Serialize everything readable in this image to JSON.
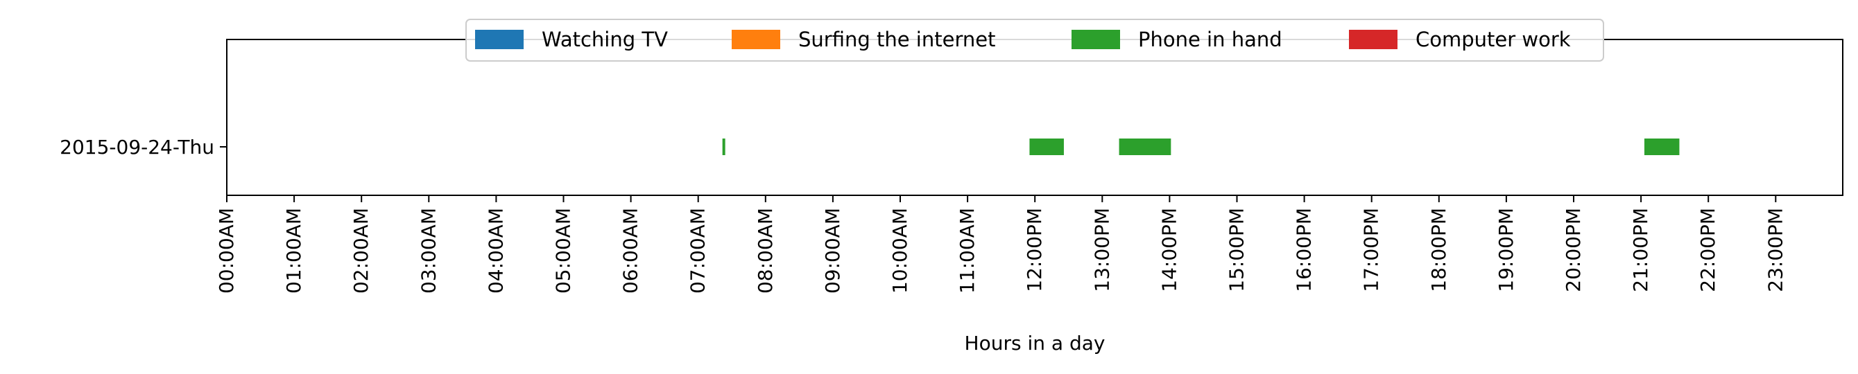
{
  "chart_data": {
    "type": "timeline",
    "xlabel": "Hours in a day",
    "ylabel": "",
    "xlim": [
      0,
      24
    ],
    "x_ticks": [
      "00:00AM",
      "01:00AM",
      "02:00AM",
      "03:00AM",
      "04:00AM",
      "05:00AM",
      "06:00AM",
      "07:00AM",
      "08:00AM",
      "09:00AM",
      "10:00AM",
      "11:00AM",
      "12:00PM",
      "13:00PM",
      "14:00PM",
      "15:00PM",
      "16:00PM",
      "17:00PM",
      "18:00PM",
      "19:00PM",
      "20:00PM",
      "21:00PM",
      "22:00PM",
      "23:00PM"
    ],
    "categories": [
      "2015-09-24-Thu"
    ],
    "legend_position": "top-center",
    "grid": false,
    "series": [
      {
        "name": "Watching TV",
        "color": "#1f77b4",
        "intervals": []
      },
      {
        "name": "Surfing the internet",
        "color": "#ff7f0e",
        "intervals": []
      },
      {
        "name": "Phone in hand",
        "color": "#2ca02c",
        "intervals": [
          {
            "category": "2015-09-24-Thu",
            "start": 7.36,
            "end": 7.4
          },
          {
            "category": "2015-09-24-Thu",
            "start": 11.92,
            "end": 12.43
          },
          {
            "category": "2015-09-24-Thu",
            "start": 13.25,
            "end": 14.02
          },
          {
            "category": "2015-09-24-Thu",
            "start": 21.05,
            "end": 21.57
          }
        ]
      },
      {
        "name": "Computer work",
        "color": "#d62728",
        "intervals": []
      }
    ]
  }
}
